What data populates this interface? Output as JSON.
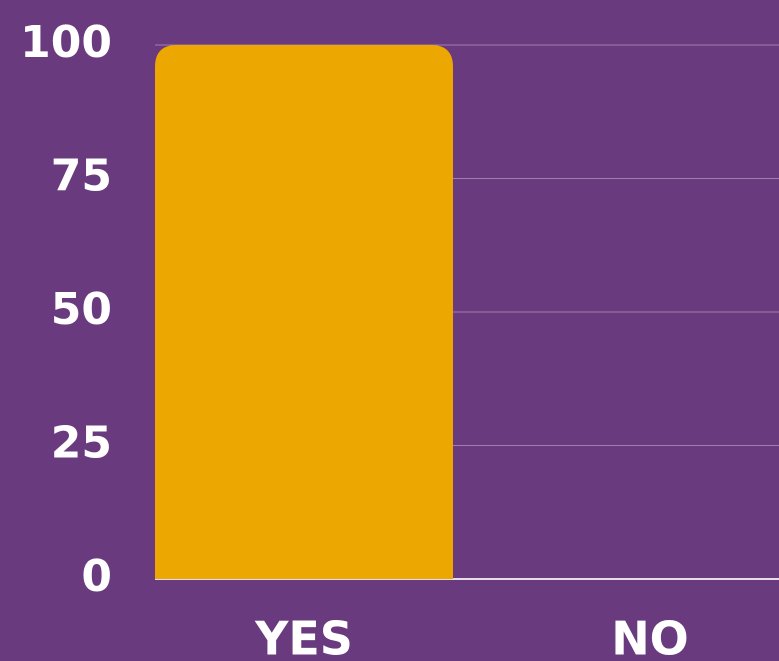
{
  "chart_data": {
    "type": "bar",
    "categories": [
      "YES",
      "NO"
    ],
    "values": [
      100,
      0
    ],
    "color": "#eca700",
    "ylim": [
      0,
      100
    ],
    "yticks": [
      0,
      25,
      50,
      75,
      100
    ],
    "grid": true
  }
}
